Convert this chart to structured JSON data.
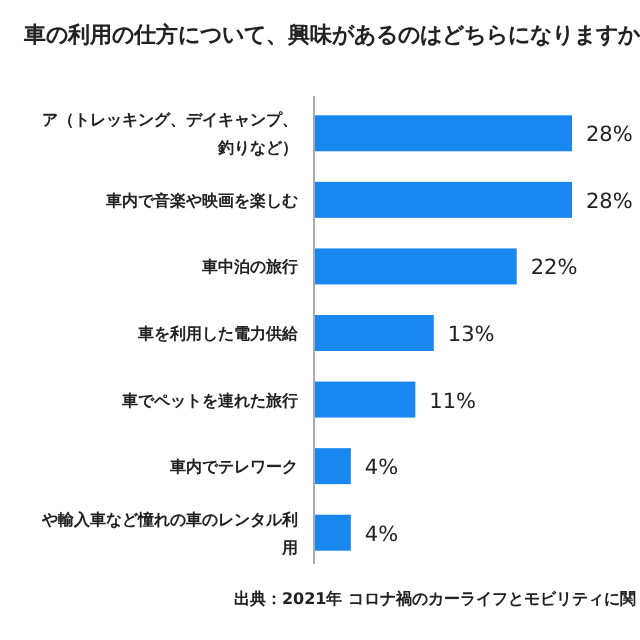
{
  "chart_data": {
    "type": "bar",
    "orientation": "horizontal",
    "title": "車の利用の仕方について、興味があるのはどちらになりますか",
    "categories": [
      "ア（トレッキング、デイキャンプ、釣りなど）",
      "車内で音楽や映画を楽しむ",
      "車中泊の旅行",
      "車を利用した電力供給",
      "車でペットを連れた旅行",
      "車内でテレワーク",
      "や輸入車など憧れの車のレンタル利用"
    ],
    "values": [
      28,
      28,
      22,
      13,
      11,
      4,
      4
    ],
    "value_labels": [
      "28%",
      "28%",
      "22%",
      "13%",
      "11%",
      "4%",
      "4%"
    ],
    "color": "#1a87f0",
    "annotations": [
      "出典：2021年 コロナ禍のカーライフとモビリティに関"
    ]
  }
}
